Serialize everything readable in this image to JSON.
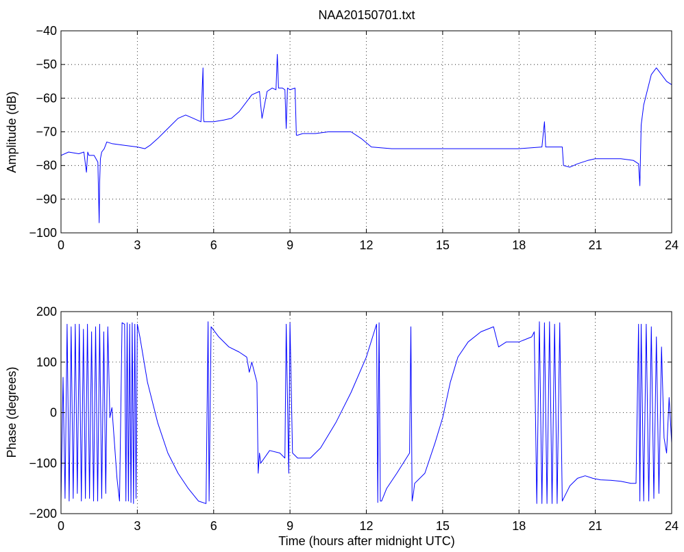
{
  "figure": {
    "title": "NAA20150701.txt",
    "line_color": "#0000ff",
    "grid": true,
    "grid_style": "dotted"
  },
  "chart_data": [
    {
      "type": "line",
      "title": "NAA20150701.txt",
      "xlabel": "",
      "ylabel": "Amplitude (dB)",
      "xlim": [
        0,
        24
      ],
      "ylim": [
        -100,
        -40
      ],
      "x_ticks": [
        0,
        3,
        6,
        9,
        12,
        15,
        18,
        21,
        24
      ],
      "y_ticks": [
        -100,
        -90,
        -80,
        -70,
        -60,
        -50,
        -40
      ],
      "x_tick_labels": [
        "0",
        "3",
        "6",
        "9",
        "12",
        "15",
        "18",
        "21",
        "24"
      ],
      "y_tick_labels": [
        "−100",
        "−90",
        "−80",
        "−70",
        "−60",
        "−50",
        "−40"
      ],
      "grid": true,
      "series": [
        {
          "color": "#0000ff",
          "x": [
            0,
            0.3,
            0.7,
            0.9,
            1.0,
            1.05,
            1.1,
            1.3,
            1.45,
            1.5,
            1.52,
            1.55,
            1.6,
            1.7,
            1.8,
            2.0,
            2.5,
            3.0,
            3.3,
            3.5,
            3.8,
            4.2,
            4.6,
            4.9,
            5.2,
            5.5,
            5.58,
            5.6,
            5.62,
            5.7,
            6.0,
            6.4,
            6.7,
            7.0,
            7.3,
            7.5,
            7.8,
            7.85,
            7.9,
            8.1,
            8.3,
            8.45,
            8.5,
            8.55,
            8.7,
            8.8,
            8.85,
            8.9,
            9.0,
            9.2,
            9.25,
            9.3,
            9.5,
            10.0,
            10.5,
            11.0,
            11.4,
            11.8,
            12.2,
            13.0,
            14.0,
            15.0,
            16.0,
            17.0,
            18.0,
            18.9,
            19.0,
            19.05,
            19.5,
            19.7,
            19.75,
            20.0,
            20.3,
            20.7,
            21.0,
            21.5,
            22.0,
            22.5,
            22.7,
            22.75,
            22.8,
            22.9,
            23.0,
            23.2,
            23.4,
            23.6,
            23.8,
            24.0
          ],
          "y": [
            -77,
            -76,
            -76.5,
            -76,
            -82,
            -76,
            -77,
            -77,
            -79,
            -97,
            -85,
            -78,
            -76,
            -75,
            -73,
            -73.5,
            -74,
            -74.5,
            -75,
            -74,
            -72,
            -69,
            -66,
            -65,
            -66,
            -67,
            -51,
            -66,
            -67,
            -67,
            -67,
            -66.5,
            -66,
            -64,
            -61,
            -59,
            -58,
            -62,
            -66,
            -58,
            -57,
            -57.5,
            -47,
            -57,
            -57,
            -57.5,
            -69,
            -57,
            -57.5,
            -57,
            -71,
            -71,
            -70.5,
            -70.5,
            -70,
            -70,
            -70,
            -72,
            -74.5,
            -75,
            -75,
            -75,
            -75,
            -75,
            -75,
            -74.5,
            -67,
            -74.5,
            -74.5,
            -74.5,
            -80,
            -80.5,
            -79.5,
            -78.5,
            -78,
            -78,
            -78,
            -78.5,
            -79.5,
            -86,
            -68,
            -62,
            -59,
            -53,
            -51,
            -53,
            -55,
            -56
          ]
        }
      ]
    },
    {
      "type": "line",
      "title": "",
      "xlabel": "Time (hours after midnight UTC)",
      "ylabel": "Phase (degrees)",
      "xlim": [
        0,
        24
      ],
      "ylim": [
        -200,
        200
      ],
      "x_ticks": [
        0,
        3,
        6,
        9,
        12,
        15,
        18,
        21,
        24
      ],
      "y_ticks": [
        -200,
        -100,
        0,
        100,
        200
      ],
      "x_tick_labels": [
        "0",
        "3",
        "6",
        "9",
        "12",
        "15",
        "18",
        "21",
        "24"
      ],
      "y_tick_labels": [
        "−200",
        "−100",
        "0",
        "100",
        "200"
      ],
      "grid": true,
      "series": [
        {
          "color": "#0000ff",
          "x": [
            0,
            0.08,
            0.16,
            0.24,
            0.32,
            0.4,
            0.48,
            0.56,
            0.64,
            0.72,
            0.8,
            0.88,
            0.96,
            1.04,
            1.12,
            1.2,
            1.28,
            1.36,
            1.44,
            1.52,
            1.6,
            1.68,
            1.76,
            1.84,
            1.92,
            2.0,
            2.1,
            2.2,
            2.3,
            2.4,
            2.5,
            2.55,
            2.6,
            2.65,
            2.7,
            2.75,
            2.8,
            2.85,
            2.9,
            2.95,
            3.0,
            3.1,
            3.2,
            3.4,
            3.8,
            4.2,
            4.6,
            5.0,
            5.4,
            5.7,
            5.78,
            5.82,
            5.9,
            6.2,
            6.6,
            7.0,
            7.3,
            7.4,
            7.5,
            7.7,
            7.75,
            7.8,
            7.85,
            8.2,
            8.6,
            8.8,
            8.85,
            8.95,
            9.0,
            9.1,
            9.3,
            9.8,
            10.2,
            10.8,
            11.4,
            12.0,
            12.4,
            12.45,
            12.5,
            12.55,
            12.6,
            12.8,
            13.2,
            13.7,
            13.75,
            13.8,
            13.85,
            13.9,
            14.3,
            14.7,
            15.0,
            15.3,
            15.6,
            16.0,
            16.5,
            17.0,
            17.2,
            17.5,
            18.0,
            18.5,
            18.6,
            18.7,
            18.8,
            18.9,
            19.0,
            19.1,
            19.2,
            19.3,
            19.4,
            19.5,
            19.6,
            19.7,
            19.8,
            19.9,
            20.0,
            20.3,
            20.6,
            20.9,
            21.2,
            21.6,
            22.0,
            22.4,
            22.6,
            22.7,
            22.75,
            22.8,
            22.9,
            23.0,
            23.1,
            23.2,
            23.3,
            23.4,
            23.5,
            23.6,
            23.7,
            23.8,
            23.9,
            24.0
          ],
          "y": [
            -175,
            70,
            -170,
            175,
            -175,
            170,
            -170,
            175,
            -160,
            175,
            -175,
            165,
            -170,
            175,
            -170,
            160,
            -175,
            170,
            -175,
            175,
            -170,
            160,
            -160,
            170,
            -10,
            10,
            -60,
            -130,
            -175,
            178,
            175,
            -175,
            178,
            -175,
            175,
            -178,
            178,
            -180,
            175,
            -170,
            175,
            150,
            120,
            60,
            -20,
            -80,
            -120,
            -150,
            -175,
            -180,
            180,
            -175,
            170,
            150,
            130,
            120,
            110,
            80,
            100,
            60,
            -120,
            -80,
            -100,
            -75,
            -80,
            -90,
            175,
            -120,
            178,
            -80,
            -90,
            -90,
            -70,
            -20,
            40,
            110,
            175,
            -178,
            178,
            -175,
            -175,
            -150,
            -120,
            -80,
            170,
            -175,
            -160,
            -140,
            -120,
            -60,
            -10,
            60,
            110,
            140,
            160,
            170,
            130,
            140,
            140,
            150,
            160,
            -180,
            180,
            -180,
            178,
            -180,
            180,
            -180,
            175,
            -180,
            178,
            -175,
            -165,
            -155,
            -145,
            -130,
            -125,
            -130,
            -133,
            -134,
            -136,
            -140,
            -140,
            175,
            -175,
            175,
            -175,
            175,
            -175,
            170,
            -170,
            150,
            -160,
            130,
            -50,
            -80,
            30,
            -60
          ]
        }
      ]
    }
  ]
}
